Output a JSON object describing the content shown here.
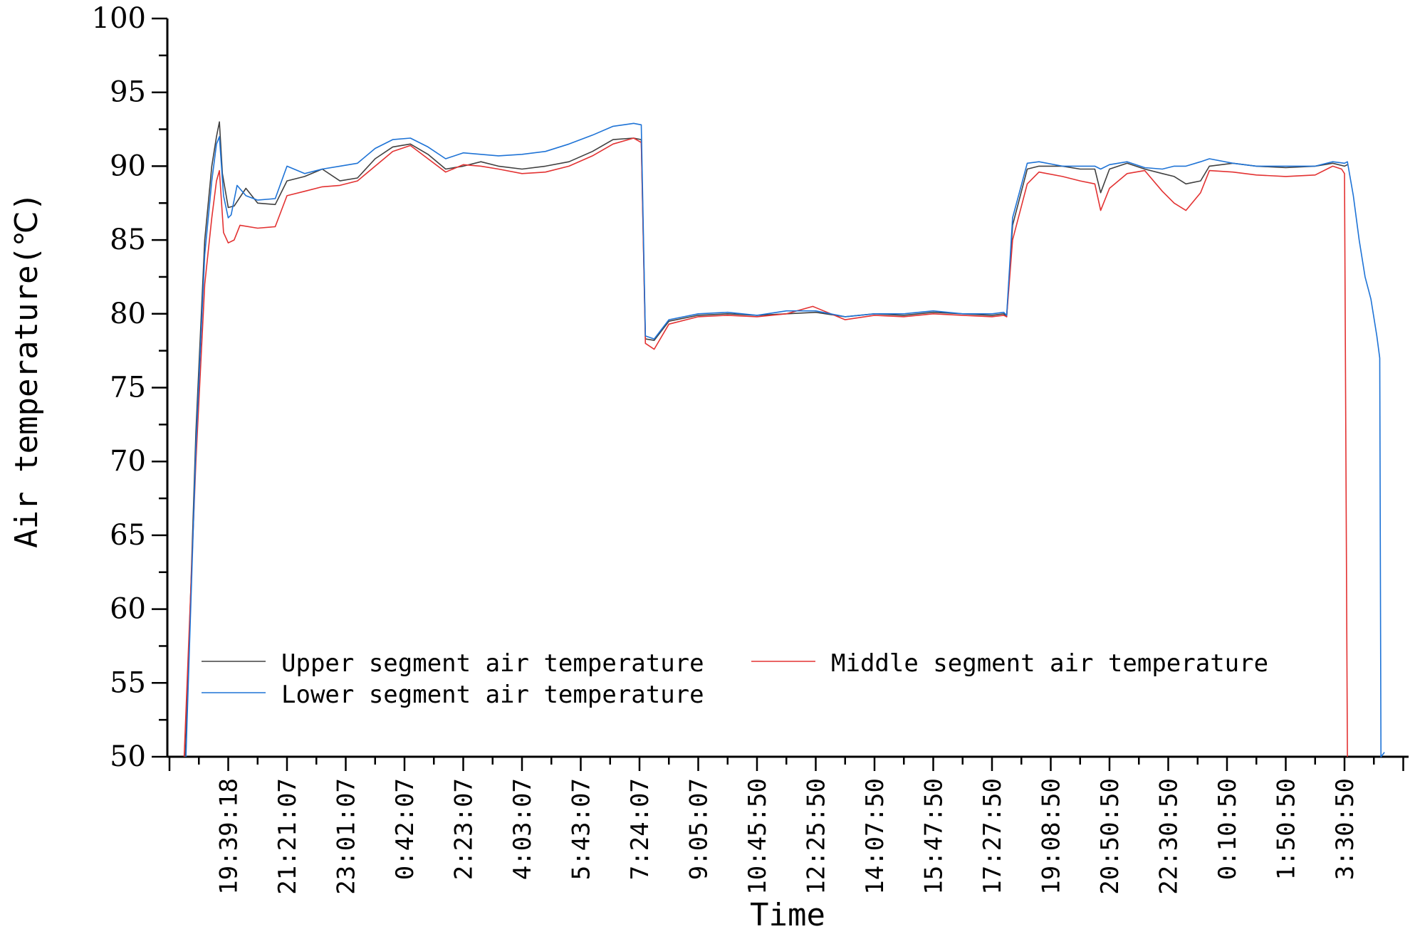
{
  "chart_data": {
    "type": "line",
    "title": "",
    "xlabel": "Time",
    "ylabel": "Air temperature(℃)",
    "ylim": [
      50,
      100
    ],
    "yticks": [
      50,
      55,
      60,
      65,
      70,
      75,
      80,
      85,
      90,
      95,
      100
    ],
    "x_tick_labels": [
      "19:39:18",
      "21:21:07",
      "23:01:07",
      "0:42:07",
      "2:23:07",
      "4:03:07",
      "5:43:07",
      "7:24:07",
      "9:05:07",
      "10:45:50",
      "12:25:50",
      "14:07:50",
      "15:47:50",
      "17:27:50",
      "19:08:50",
      "20:50:50",
      "22:30:50",
      "0:10:50",
      "1:50:50",
      "3:30:50"
    ],
    "x_tick_index": [
      1,
      2,
      3,
      4,
      5,
      6,
      7,
      8,
      9,
      10,
      11,
      12,
      13,
      14,
      15,
      16,
      17,
      18,
      19,
      20
    ],
    "xlim": [
      0.0,
      21.0
    ],
    "grid": false,
    "legend_position": "bottom-left",
    "series": [
      {
        "name": "Upper segment air temperature",
        "color": "#404040",
        "points": [
          [
            0.27,
            50
          ],
          [
            0.45,
            72
          ],
          [
            0.6,
            85
          ],
          [
            0.72,
            90
          ],
          [
            0.8,
            92
          ],
          [
            0.85,
            93
          ],
          [
            0.9,
            89.5
          ],
          [
            1.0,
            87.2
          ],
          [
            1.1,
            87.3
          ],
          [
            1.3,
            88.5
          ],
          [
            1.5,
            87.5
          ],
          [
            1.8,
            87.4
          ],
          [
            2.0,
            89.0
          ],
          [
            2.3,
            89.3
          ],
          [
            2.6,
            89.8
          ],
          [
            2.9,
            89.0
          ],
          [
            3.2,
            89.2
          ],
          [
            3.5,
            90.5
          ],
          [
            3.8,
            91.3
          ],
          [
            4.1,
            91.5
          ],
          [
            4.4,
            90.8
          ],
          [
            4.7,
            89.8
          ],
          [
            5.0,
            90.0
          ],
          [
            5.3,
            90.3
          ],
          [
            5.6,
            90.0
          ],
          [
            6.0,
            89.8
          ],
          [
            6.4,
            90.0
          ],
          [
            6.8,
            90.3
          ],
          [
            7.2,
            91.0
          ],
          [
            7.55,
            91.8
          ],
          [
            7.9,
            91.9
          ],
          [
            8.03,
            91.8
          ],
          [
            8.1,
            78.3
          ],
          [
            8.25,
            78.2
          ],
          [
            8.5,
            79.5
          ],
          [
            9.0,
            79.9
          ],
          [
            9.5,
            80.0
          ],
          [
            10.0,
            79.9
          ],
          [
            10.5,
            80.0
          ],
          [
            11.0,
            80.1
          ],
          [
            11.5,
            79.8
          ],
          [
            12.0,
            80.0
          ],
          [
            12.5,
            79.9
          ],
          [
            13.0,
            80.1
          ],
          [
            13.5,
            80.0
          ],
          [
            14.0,
            79.9
          ],
          [
            14.2,
            80.0
          ],
          [
            14.25,
            79.8
          ],
          [
            14.35,
            86.0
          ],
          [
            14.6,
            89.8
          ],
          [
            14.8,
            90.0
          ],
          [
            15.2,
            90.0
          ],
          [
            15.5,
            89.8
          ],
          [
            15.75,
            89.8
          ],
          [
            15.85,
            88.2
          ],
          [
            16.0,
            89.8
          ],
          [
            16.3,
            90.2
          ],
          [
            16.6,
            89.8
          ],
          [
            16.9,
            89.5
          ],
          [
            17.1,
            89.3
          ],
          [
            17.3,
            88.8
          ],
          [
            17.55,
            89.0
          ],
          [
            17.7,
            90.0
          ],
          [
            18.1,
            90.2
          ],
          [
            18.5,
            90.0
          ],
          [
            19.0,
            89.9
          ],
          [
            19.5,
            90.0
          ],
          [
            19.8,
            90.2
          ],
          [
            20.0,
            90.0
          ],
          [
            20.05,
            90.1
          ]
        ]
      },
      {
        "name": "Middle segment air temperature",
        "color": "#e33232",
        "points": [
          [
            0.25,
            50
          ],
          [
            0.45,
            70
          ],
          [
            0.6,
            82
          ],
          [
            0.72,
            86.5
          ],
          [
            0.8,
            89
          ],
          [
            0.85,
            89.7
          ],
          [
            0.92,
            85.5
          ],
          [
            1.0,
            84.8
          ],
          [
            1.1,
            85.0
          ],
          [
            1.2,
            86.0
          ],
          [
            1.5,
            85.8
          ],
          [
            1.8,
            85.9
          ],
          [
            2.0,
            88.0
          ],
          [
            2.3,
            88.3
          ],
          [
            2.6,
            88.6
          ],
          [
            2.9,
            88.7
          ],
          [
            3.2,
            89.0
          ],
          [
            3.5,
            90.0
          ],
          [
            3.8,
            91.0
          ],
          [
            4.1,
            91.4
          ],
          [
            4.4,
            90.5
          ],
          [
            4.7,
            89.6
          ],
          [
            5.0,
            90.1
          ],
          [
            5.3,
            90.0
          ],
          [
            5.6,
            89.8
          ],
          [
            6.0,
            89.5
          ],
          [
            6.4,
            89.6
          ],
          [
            6.8,
            90.0
          ],
          [
            7.2,
            90.7
          ],
          [
            7.55,
            91.5
          ],
          [
            7.9,
            91.9
          ],
          [
            8.03,
            91.6
          ],
          [
            8.1,
            78.0
          ],
          [
            8.25,
            77.6
          ],
          [
            8.5,
            79.3
          ],
          [
            9.0,
            79.8
          ],
          [
            9.5,
            79.9
          ],
          [
            10.0,
            79.8
          ],
          [
            10.5,
            80.0
          ],
          [
            10.95,
            80.5
          ],
          [
            11.5,
            79.6
          ],
          [
            12.0,
            79.9
          ],
          [
            12.5,
            79.8
          ],
          [
            13.0,
            80.0
          ],
          [
            13.5,
            79.9
          ],
          [
            14.0,
            79.8
          ],
          [
            14.2,
            79.9
          ],
          [
            14.25,
            79.8
          ],
          [
            14.35,
            85.0
          ],
          [
            14.6,
            88.8
          ],
          [
            14.8,
            89.6
          ],
          [
            15.2,
            89.3
          ],
          [
            15.5,
            89.0
          ],
          [
            15.75,
            88.8
          ],
          [
            15.85,
            87.0
          ],
          [
            16.0,
            88.5
          ],
          [
            16.3,
            89.5
          ],
          [
            16.6,
            89.7
          ],
          [
            16.9,
            88.3
          ],
          [
            17.1,
            87.5
          ],
          [
            17.3,
            87.0
          ],
          [
            17.55,
            88.2
          ],
          [
            17.7,
            89.7
          ],
          [
            18.1,
            89.6
          ],
          [
            18.5,
            89.4
          ],
          [
            19.0,
            89.3
          ],
          [
            19.5,
            89.4
          ],
          [
            19.8,
            90.0
          ],
          [
            19.95,
            89.8
          ],
          [
            20.0,
            89.5
          ],
          [
            20.05,
            50
          ]
        ]
      },
      {
        "name": "Lower segment air temperature",
        "color": "#1e73d6",
        "points": [
          [
            0.28,
            50
          ],
          [
            0.45,
            71
          ],
          [
            0.6,
            84
          ],
          [
            0.72,
            89
          ],
          [
            0.8,
            91.5
          ],
          [
            0.85,
            92
          ],
          [
            0.92,
            88
          ],
          [
            1.0,
            86.5
          ],
          [
            1.05,
            86.7
          ],
          [
            1.15,
            88.7
          ],
          [
            1.3,
            88.0
          ],
          [
            1.5,
            87.7
          ],
          [
            1.8,
            87.8
          ],
          [
            2.0,
            90.0
          ],
          [
            2.3,
            89.5
          ],
          [
            2.6,
            89.8
          ],
          [
            2.9,
            90.0
          ],
          [
            3.2,
            90.2
          ],
          [
            3.5,
            91.2
          ],
          [
            3.8,
            91.8
          ],
          [
            4.1,
            91.9
          ],
          [
            4.4,
            91.3
          ],
          [
            4.7,
            90.5
          ],
          [
            5.0,
            90.9
          ],
          [
            5.3,
            90.8
          ],
          [
            5.6,
            90.7
          ],
          [
            6.0,
            90.8
          ],
          [
            6.4,
            91.0
          ],
          [
            6.8,
            91.5
          ],
          [
            7.2,
            92.1
          ],
          [
            7.55,
            92.7
          ],
          [
            7.9,
            92.9
          ],
          [
            8.03,
            92.8
          ],
          [
            8.1,
            78.5
          ],
          [
            8.25,
            78.3
          ],
          [
            8.5,
            79.6
          ],
          [
            9.0,
            80.0
          ],
          [
            9.5,
            80.1
          ],
          [
            10.0,
            79.9
          ],
          [
            10.5,
            80.2
          ],
          [
            11.0,
            80.2
          ],
          [
            11.5,
            79.8
          ],
          [
            12.0,
            80.0
          ],
          [
            12.5,
            80.0
          ],
          [
            13.0,
            80.2
          ],
          [
            13.5,
            80.0
          ],
          [
            14.0,
            80.0
          ],
          [
            14.2,
            80.1
          ],
          [
            14.25,
            79.9
          ],
          [
            14.35,
            86.5
          ],
          [
            14.6,
            90.2
          ],
          [
            14.8,
            90.3
          ],
          [
            15.2,
            90.0
          ],
          [
            15.5,
            90.0
          ],
          [
            15.75,
            90.0
          ],
          [
            15.85,
            89.8
          ],
          [
            16.0,
            90.1
          ],
          [
            16.3,
            90.3
          ],
          [
            16.6,
            89.9
          ],
          [
            16.9,
            89.8
          ],
          [
            17.1,
            90.0
          ],
          [
            17.3,
            90.0
          ],
          [
            17.55,
            90.3
          ],
          [
            17.7,
            90.5
          ],
          [
            18.1,
            90.2
          ],
          [
            18.5,
            90.0
          ],
          [
            19.0,
            90.0
          ],
          [
            19.5,
            90.0
          ],
          [
            19.8,
            90.3
          ],
          [
            20.0,
            90.2
          ],
          [
            20.05,
            90.3
          ],
          [
            20.15,
            88.0
          ],
          [
            20.25,
            85.0
          ],
          [
            20.35,
            82.5
          ],
          [
            20.45,
            81.0
          ],
          [
            20.55,
            78.5
          ],
          [
            20.6,
            77.0
          ],
          [
            20.62,
            50.0
          ],
          [
            20.68,
            50.3
          ]
        ]
      }
    ]
  }
}
